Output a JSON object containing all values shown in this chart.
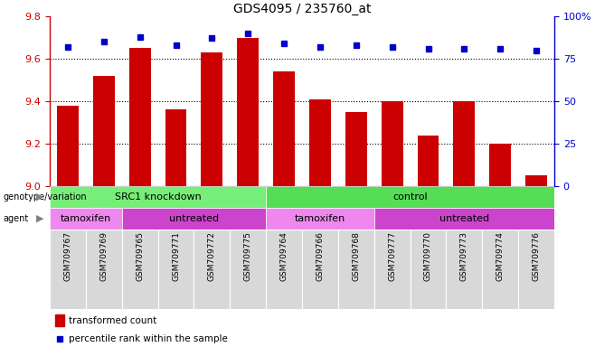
{
  "title": "GDS4095 / 235760_at",
  "samples": [
    "GSM709767",
    "GSM709769",
    "GSM709765",
    "GSM709771",
    "GSM709772",
    "GSM709775",
    "GSM709764",
    "GSM709766",
    "GSM709768",
    "GSM709777",
    "GSM709770",
    "GSM709773",
    "GSM709774",
    "GSM709776"
  ],
  "bar_values": [
    9.38,
    9.52,
    9.65,
    9.36,
    9.63,
    9.7,
    9.54,
    9.41,
    9.35,
    9.4,
    9.24,
    9.4,
    9.2,
    9.05
  ],
  "dot_values": [
    82,
    85,
    88,
    83,
    87,
    90,
    84,
    82,
    83,
    82,
    81,
    81,
    81,
    80
  ],
  "ylim_left": [
    9.0,
    9.8
  ],
  "ylim_right": [
    0,
    100
  ],
  "yticks_left": [
    9.0,
    9.2,
    9.4,
    9.6,
    9.8
  ],
  "yticks_right": [
    0,
    25,
    50,
    75,
    100
  ],
  "bar_color": "#cc0000",
  "dot_color": "#0000cc",
  "genotype_groups": [
    {
      "label": "SRC1 knockdown",
      "start": 0,
      "end": 6,
      "color": "#77ee77"
    },
    {
      "label": "control",
      "start": 6,
      "end": 14,
      "color": "#55dd55"
    }
  ],
  "agent_groups": [
    {
      "label": "tamoxifen",
      "start": 0,
      "end": 2,
      "color": "#ee88ee"
    },
    {
      "label": "untreated",
      "start": 2,
      "end": 6,
      "color": "#cc44cc"
    },
    {
      "label": "tamoxifen",
      "start": 6,
      "end": 9,
      "color": "#ee88ee"
    },
    {
      "label": "untreated",
      "start": 9,
      "end": 14,
      "color": "#cc44cc"
    }
  ],
  "bg_color": "#d8d8d8",
  "legend_bar_label": "transformed count",
  "legend_dot_label": "percentile rank within the sample",
  "left_tick_color": "#cc0000",
  "right_tick_color": "#0000cc",
  "bar_width": 0.6,
  "fig_width": 6.58,
  "fig_height": 3.84,
  "dpi": 100
}
